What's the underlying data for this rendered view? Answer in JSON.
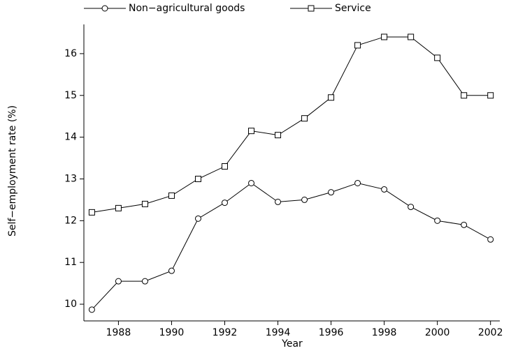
{
  "chart_data": {
    "type": "line",
    "x_label": "Year",
    "y_label": "Self−employment rate (%)",
    "x": [
      1987,
      1988,
      1989,
      1990,
      1991,
      1992,
      1993,
      1994,
      1995,
      1996,
      1997,
      1998,
      1999,
      2000,
      2001,
      2002
    ],
    "series": [
      {
        "name": "Non−agricultural goods",
        "color": "#000000",
        "marker": "circle",
        "values": [
          9.87,
          10.55,
          10.55,
          10.8,
          12.05,
          12.43,
          12.9,
          12.45,
          12.5,
          12.68,
          12.9,
          12.75,
          12.33,
          12.0,
          11.9,
          11.55
        ]
      },
      {
        "name": "Service",
        "color": "#000000",
        "marker": "square",
        "values": [
          12.2,
          12.3,
          12.4,
          12.6,
          13.0,
          13.3,
          14.15,
          14.05,
          14.45,
          14.95,
          16.2,
          16.4,
          16.4,
          15.9,
          15.0,
          15.0
        ]
      }
    ],
    "xlim": [
      1986.7,
      2002.35
    ],
    "xticks": [
      1988,
      1990,
      1992,
      1994,
      1996,
      1998,
      2000,
      2002
    ],
    "ylim": [
      9.6,
      16.7
    ],
    "yticks": [
      10,
      11,
      12,
      13,
      14,
      15,
      16
    ],
    "grid": false,
    "legend": "top"
  }
}
